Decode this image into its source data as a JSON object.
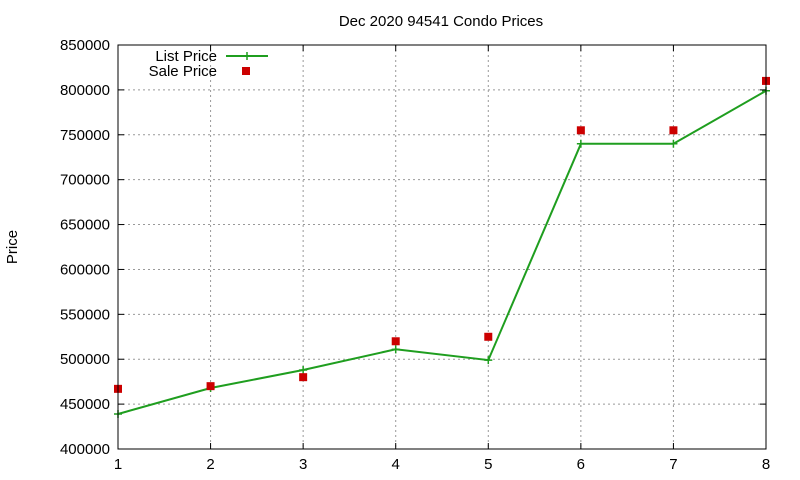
{
  "chart_data": {
    "type": "line",
    "title": "Dec 2020 94541 Condo Prices",
    "xlabel": "",
    "ylabel": "Price",
    "xlim": [
      1,
      8
    ],
    "ylim": [
      400000,
      850000
    ],
    "xticks": [
      "1",
      "2",
      "3",
      "4",
      "5",
      "6",
      "7",
      "8"
    ],
    "yticks": [
      "400000",
      "450000",
      "500000",
      "550000",
      "600000",
      "650000",
      "700000",
      "750000",
      "800000",
      "850000"
    ],
    "grid": true,
    "legend_position": "top-left",
    "x": [
      1,
      2,
      3,
      4,
      5,
      6,
      7,
      8
    ],
    "series": [
      {
        "name": "List Price",
        "style": "line-with-plus-markers",
        "color": "#1f9e1f",
        "values": [
          439000,
          468000,
          488000,
          511000,
          499000,
          740000,
          740000,
          799000
        ]
      },
      {
        "name": "Sale Price",
        "style": "square-markers",
        "color": "#cc0000",
        "values": [
          467000,
          470000,
          480000,
          520000,
          525000,
          755000,
          755000,
          810000
        ]
      }
    ]
  }
}
